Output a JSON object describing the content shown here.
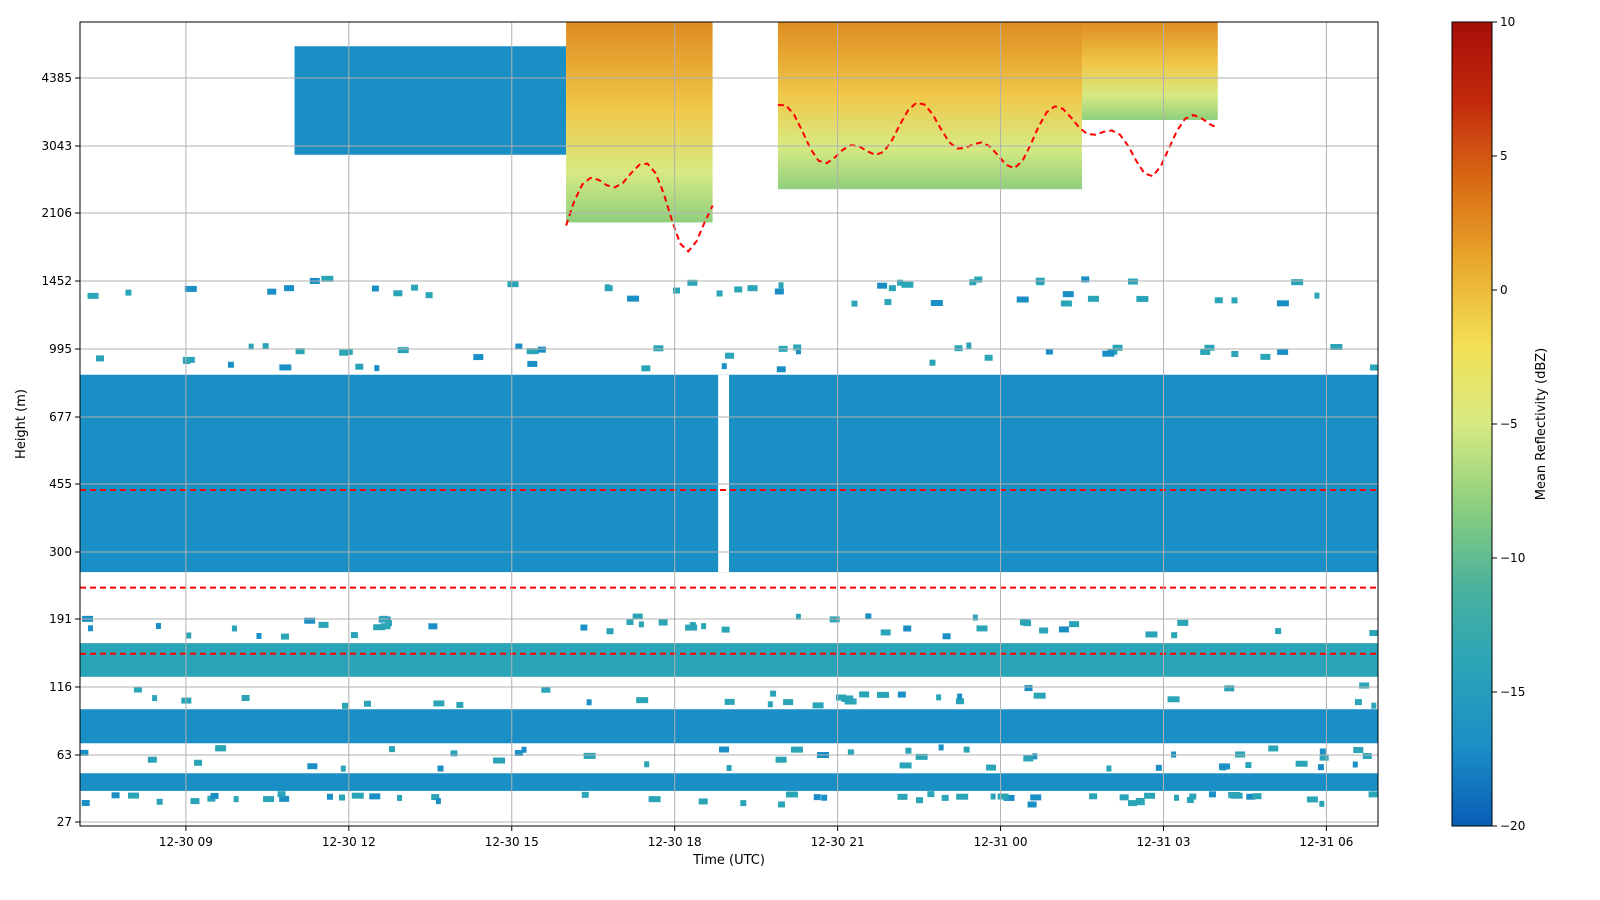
{
  "chart_data": {
    "type": "heatmap",
    "title": "",
    "xlabel": "Time (UTC)",
    "ylabel": "Height (m)",
    "x_ticks": [
      "12-30 09",
      "12-30 12",
      "12-30 15",
      "12-30 18",
      "12-30 21",
      "12-31 00",
      "12-31 03",
      "12-31 06"
    ],
    "x_tick_hours": [
      9,
      12,
      15,
      18,
      21,
      24,
      27,
      30
    ],
    "x_range_hours": [
      7.05,
      30.95
    ],
    "y_ticks": [
      "27",
      "63",
      "116",
      "191",
      "300",
      "455",
      "677",
      "995",
      "1452",
      "2106",
      "3043",
      "4385"
    ],
    "y_range_m": [
      25,
      6000
    ],
    "y_scale": "nonlinear (tick labels evenly spaced)",
    "grid": true,
    "colorbar": {
      "label": "Mean Reflectivity (dBZ)",
      "range": [
        -20,
        10
      ],
      "ticks": [
        "10",
        "5",
        "0",
        "−5",
        "−10",
        "−15",
        "−20"
      ],
      "colormap": [
        "#0a5db5",
        "#1a8fc6",
        "#2aa4b7",
        "#4bb39b",
        "#8fcf7d",
        "#d7ea82",
        "#f3df55",
        "#e9a92c",
        "#d96c14",
        "#c32a0c",
        "#a50e08"
      ]
    },
    "contour": {
      "color": "#ff0000",
      "style": "dashed"
    },
    "regions": [
      {
        "name": "lowest-band",
        "t": [
          7.05,
          30.95
        ],
        "z": [
          40,
          50
        ],
        "dbz": -16
      },
      {
        "name": "lower-band",
        "t": [
          7.05,
          30.95
        ],
        "z": [
          70,
          95
        ],
        "dbz": -16
      },
      {
        "name": "mid-band",
        "t": [
          7.05,
          30.95
        ],
        "z": [
          125,
          160
        ],
        "dbz": -15
      },
      {
        "name": "upper-band",
        "t": [
          7.05,
          30.95
        ],
        "z": [
          262,
          860
        ],
        "dbz": -16
      },
      {
        "name": "low-cloud-gap",
        "t": [
          18.8,
          19.0
        ],
        "z": [
          262,
          860
        ],
        "dbz": null
      },
      {
        "name": "cirrus-left",
        "t": [
          11.0,
          16.0
        ],
        "z": [
          2900,
          5200
        ],
        "dbz": -17
      },
      {
        "name": "cirrus-core-a",
        "t": [
          16.0,
          18.7
        ],
        "z": [
          2000,
          6000
        ],
        "dbz": -6
      },
      {
        "name": "cirrus-core-b",
        "t": [
          19.9,
          25.5
        ],
        "z": [
          2400,
          6000
        ],
        "dbz": -5
      },
      {
        "name": "cirrus-right",
        "t": [
          25.5,
          28.0
        ],
        "z": [
          3500,
          6000
        ],
        "dbz": -8
      }
    ]
  }
}
